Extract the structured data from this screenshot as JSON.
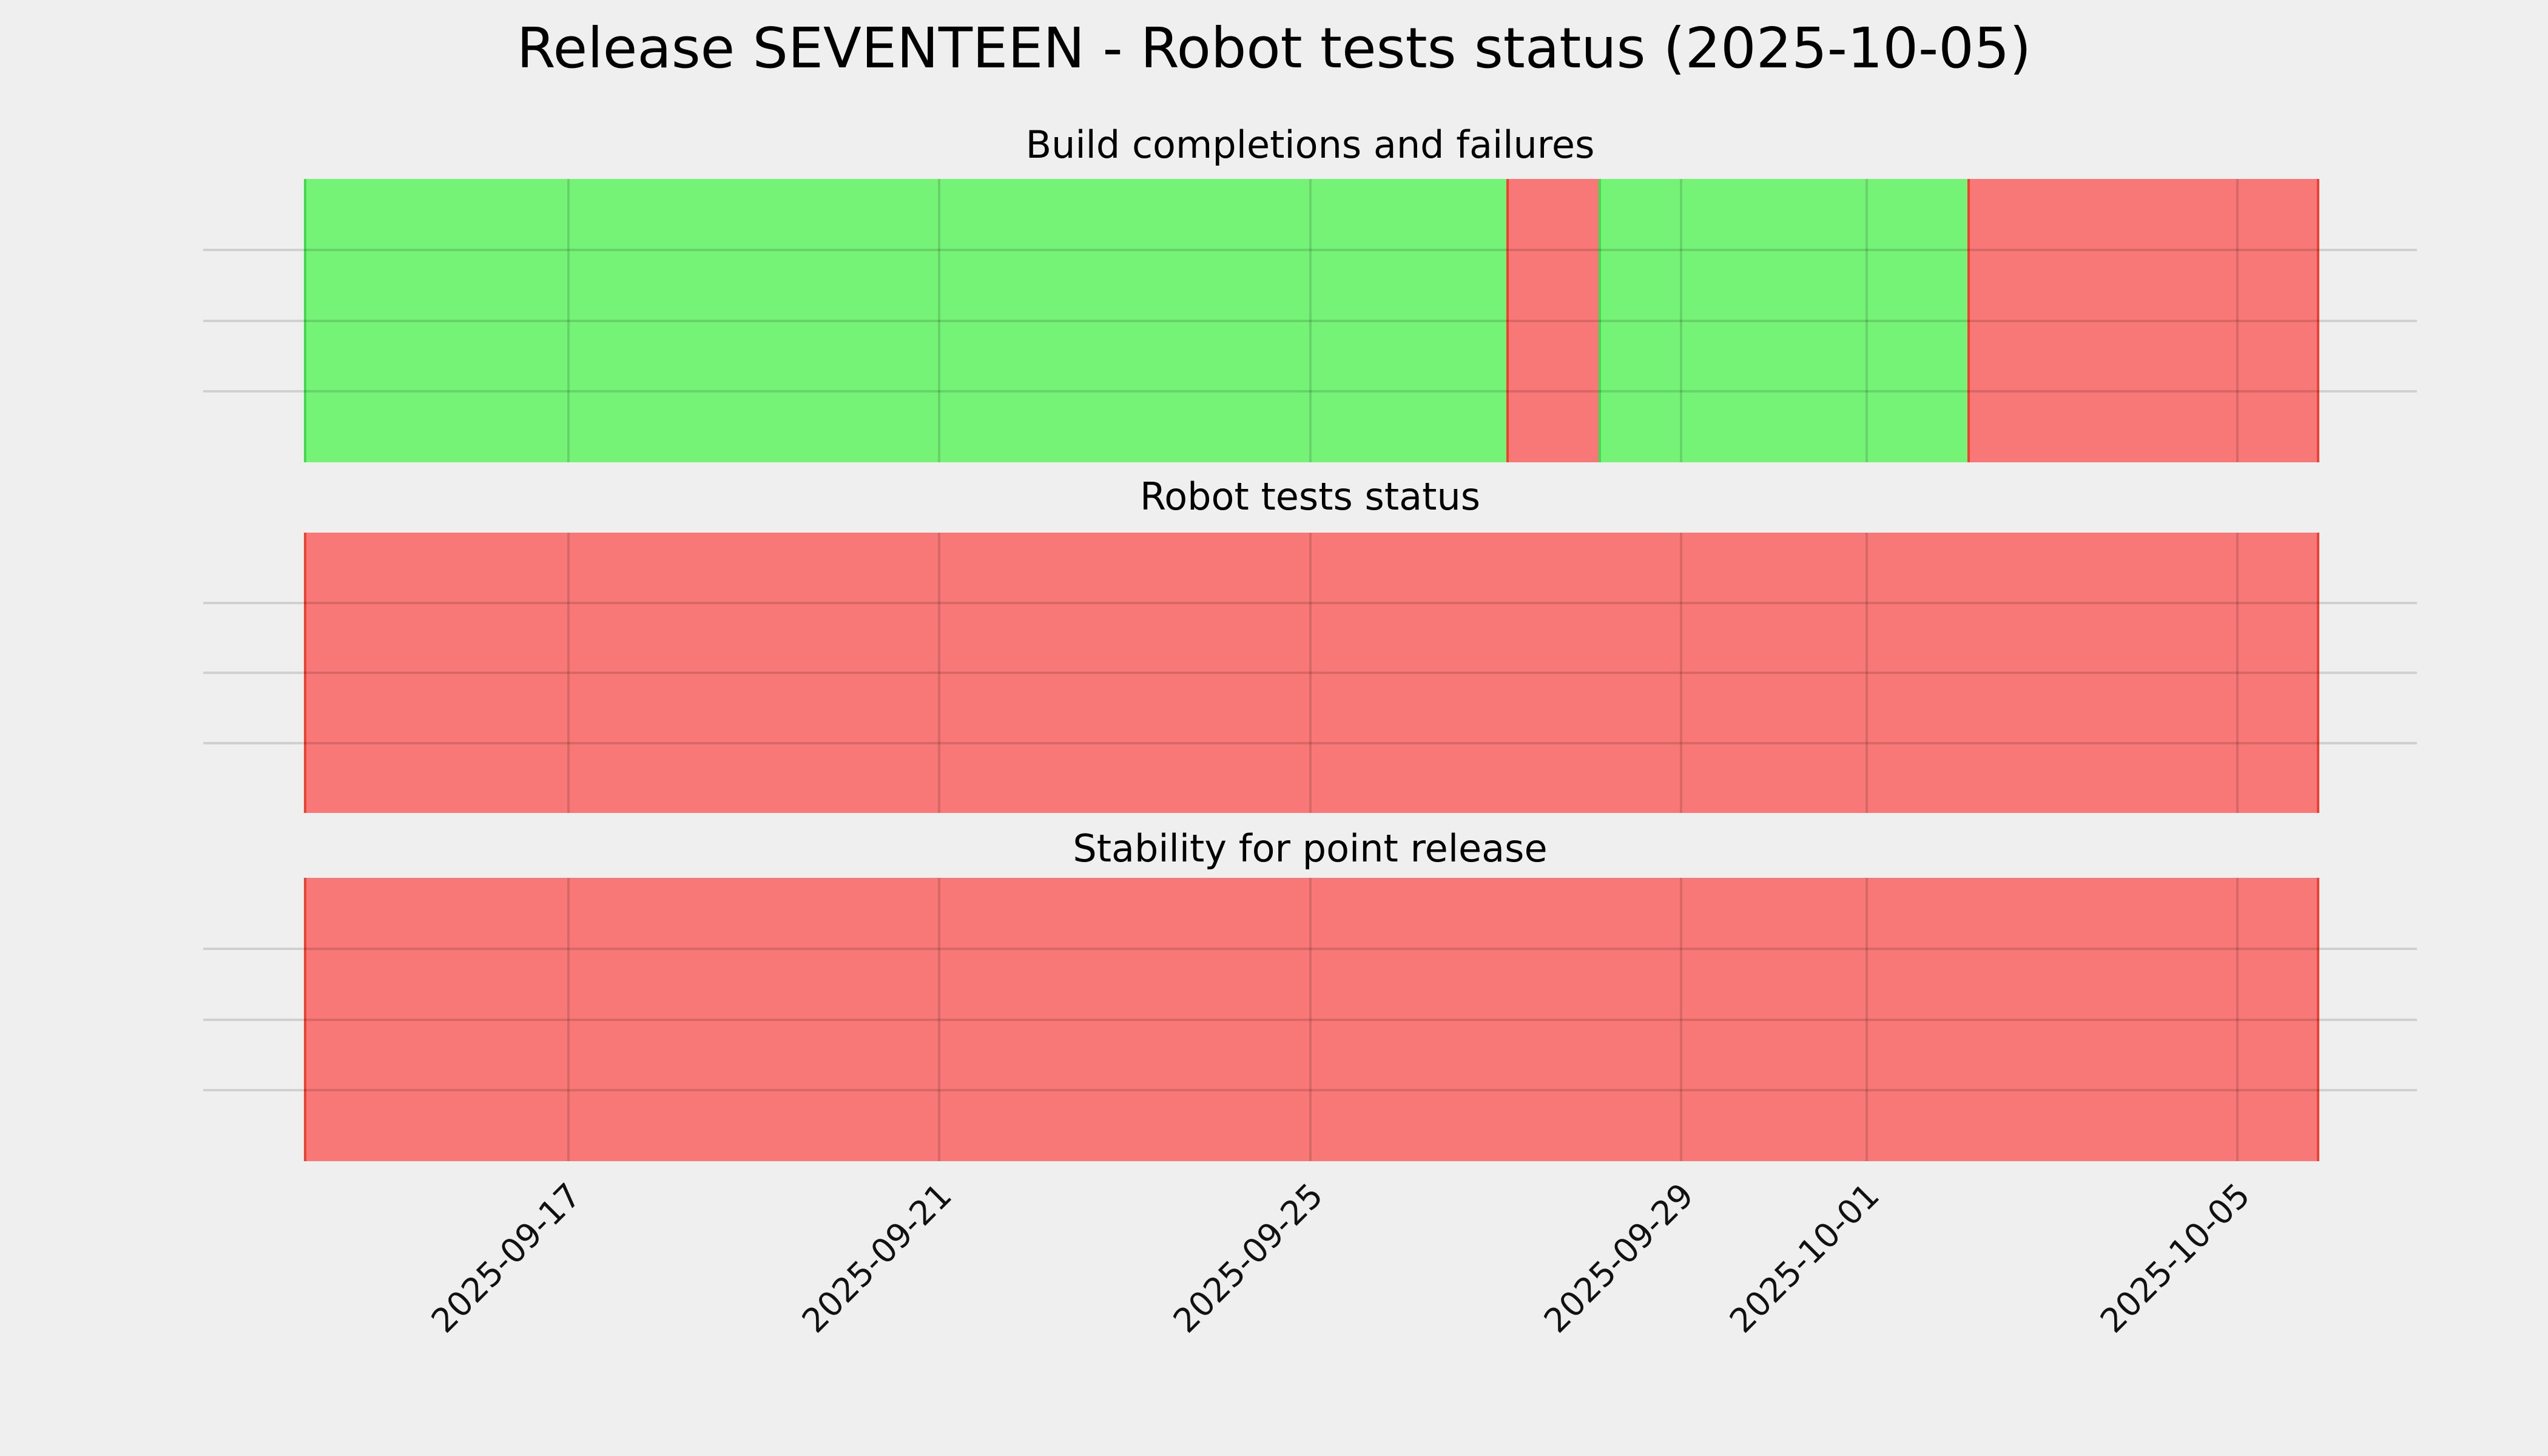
{
  "figure": {
    "title": "Release SEVENTEEN - Robot tests status (2025-10-05)",
    "background": "#efefef",
    "title_color": "#000000",
    "tick_text_color": "#111111"
  },
  "status_colors": {
    "pass": "#74f377",
    "fail": "#f77876",
    "pass_edge": "#3fdd4e",
    "fail_edge": "#ef4030",
    "grid": "rgba(0,0,0,0.13)"
  },
  "chart_data": {
    "type": "timeline-status",
    "title": "Release SEVENTEEN - Robot tests status (2025-10-05)",
    "x_range": {
      "start": "2025-09-14",
      "end": "2025-10-05"
    },
    "x_ticks": [
      {
        "label": "2025-09-17",
        "pct": 16.5
      },
      {
        "label": "2025-09-21",
        "pct": 33.24
      },
      {
        "label": "2025-09-25",
        "pct": 50.01
      },
      {
        "label": "2025-09-29",
        "pct": 66.76
      },
      {
        "label": "2025-10-01",
        "pct": 75.14
      },
      {
        "label": "2025-10-05",
        "pct": 91.89
      }
    ],
    "y_gridlines_pct": [
      25,
      50,
      75
    ],
    "grid": true,
    "legend": false,
    "panels": [
      {
        "title": "Build completions and failures",
        "segments": [
          {
            "status": "pass",
            "start": "2025-09-14",
            "end": "2025-09-27",
            "start_pct": 4.55,
            "end_pct": 58.86
          },
          {
            "status": "fail",
            "start": "2025-09-27",
            "end": "2025-09-28",
            "start_pct": 58.86,
            "end_pct": 63.03
          },
          {
            "status": "pass",
            "start": "2025-09-28",
            "end": "2025-10-02",
            "start_pct": 63.03,
            "end_pct": 79.69
          },
          {
            "status": "fail",
            "start": "2025-10-02",
            "end": "2025-10-05",
            "start_pct": 79.69,
            "end_pct": 95.59
          }
        ]
      },
      {
        "title": "Robot tests status",
        "segments": [
          {
            "status": "fail",
            "start": "2025-09-14",
            "end": "2025-10-05",
            "start_pct": 4.55,
            "end_pct": 95.59
          }
        ]
      },
      {
        "title": "Stability for point release",
        "segments": [
          {
            "status": "fail",
            "start": "2025-09-14",
            "end": "2025-10-05",
            "start_pct": 4.55,
            "end_pct": 95.59
          }
        ]
      }
    ]
  }
}
